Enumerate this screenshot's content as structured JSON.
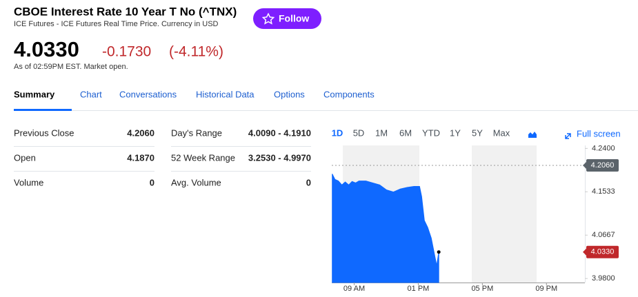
{
  "header": {
    "title": "CBOE Interest Rate 10 Year T No (^TNX)",
    "subtitle": "ICE Futures - ICE Futures Real Time Price. Currency in USD",
    "follow": "Follow"
  },
  "quote": {
    "price": "4.0330",
    "change": "-0.1730",
    "percent": "(-4.11%)",
    "as_of": "As of 02:59PM EST. Market open."
  },
  "tabs": [
    "Summary",
    "Chart",
    "Conversations",
    "Historical Data",
    "Options",
    "Components"
  ],
  "stats": {
    "rows": [
      [
        "Previous Close",
        "4.2060",
        "Day's Range",
        "4.0090 - 4.1910"
      ],
      [
        "Open",
        "4.1870",
        "52 Week Range",
        "3.2530 - 4.9970"
      ],
      [
        "Volume",
        "0",
        "Avg. Volume",
        "0"
      ]
    ]
  },
  "ranges": [
    "1D",
    "5D",
    "1M",
    "6M",
    "YTD",
    "1Y",
    "5Y",
    "Max"
  ],
  "full_screen": "Full screen",
  "chart_data": {
    "type": "area",
    "color": "#0f69ff",
    "x": [
      7.63,
      7.8,
      8.01,
      8.23,
      8.44,
      8.66,
      8.87,
      9.09,
      9.3,
      9.73,
      10.16,
      10.59,
      11.02,
      11.45,
      11.88,
      12.3,
      12.73,
      13.08,
      13.21,
      13.38,
      13.59,
      13.81,
      14.02,
      14.15,
      14.28
    ],
    "values": [
      4.189,
      4.178,
      4.175,
      4.167,
      4.173,
      4.167,
      4.174,
      4.171,
      4.175,
      4.175,
      4.171,
      4.167,
      4.157,
      4.153,
      4.159,
      4.162,
      4.164,
      4.164,
      4.144,
      4.096,
      4.082,
      4.061,
      4.027,
      4.006,
      4.033
    ],
    "xlim": [
      7.6,
      23.4
    ],
    "ylim": [
      3.972,
      4.246
    ],
    "xticks": [
      {
        "value": 9,
        "label": "09 AM"
      },
      {
        "value": 13,
        "label": "01 PM"
      },
      {
        "value": 17,
        "label": "05 PM"
      },
      {
        "value": 21,
        "label": "09 PM"
      }
    ],
    "yticks": [
      {
        "value": 3.98,
        "label": "3.9800"
      },
      {
        "value": 4.0667,
        "label": "4.0667"
      },
      {
        "value": 4.1533,
        "label": "4.1533"
      },
      {
        "value": 4.24,
        "label": "4.2400"
      }
    ],
    "previous_close": {
      "value": 4.206,
      "label": "4.2060"
    },
    "current": {
      "value": 4.033,
      "label": "4.0330"
    }
  }
}
